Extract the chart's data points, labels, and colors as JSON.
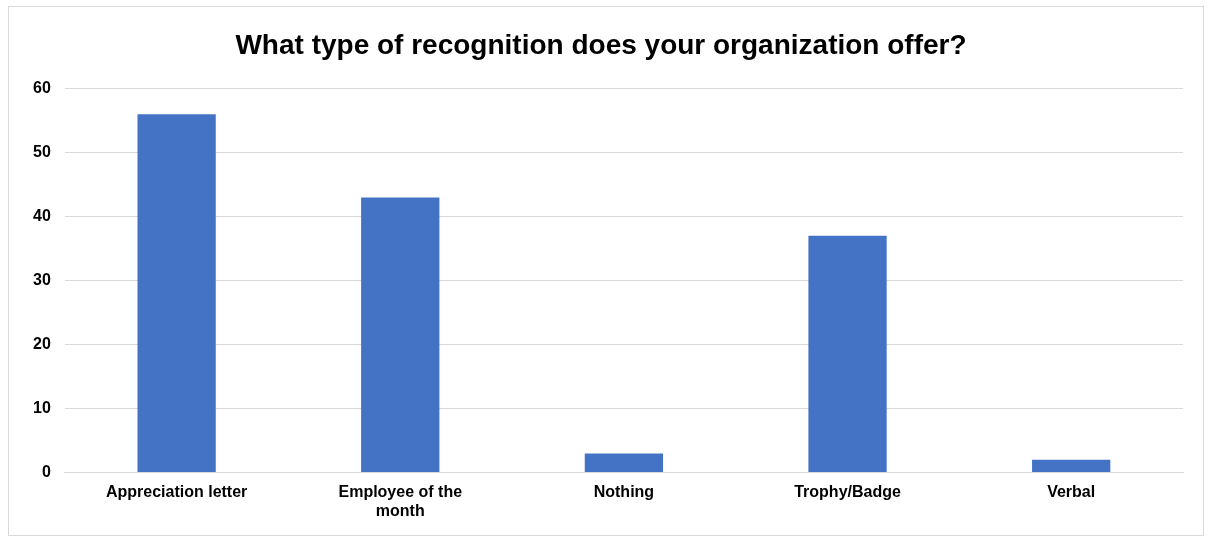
{
  "chart_data": {
    "type": "bar",
    "title": "What type of recognition does your organization offer?",
    "categories": [
      "Appreciation letter",
      "Employee of the month",
      "Nothing",
      "Trophy/Badge",
      "Verbal"
    ],
    "values": [
      56,
      43,
      3,
      37,
      2
    ],
    "color": "#4472c4",
    "ylim": [
      0,
      60
    ],
    "yticks": [
      0,
      10,
      20,
      30,
      40,
      50,
      60
    ],
    "grid": "y"
  }
}
